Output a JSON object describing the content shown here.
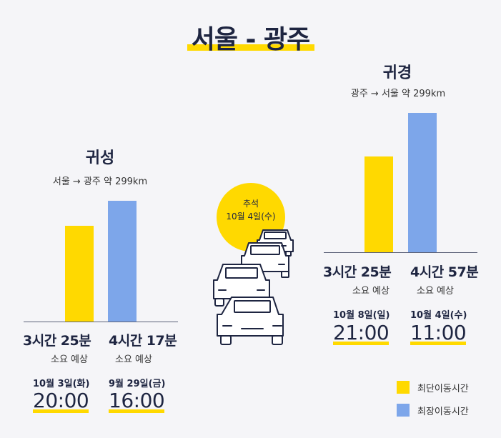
{
  "title": "서울 - 광주",
  "moon": {
    "line1": "추석",
    "line2": "10월 4일(수)"
  },
  "legend": {
    "shortest": "최단이동시간",
    "longest": "최장이동시간"
  },
  "colors": {
    "shortest": "#ffd900",
    "longest": "#7da6ea",
    "text": "#1e2541",
    "background": "#f5f5f8"
  },
  "chart_data": [
    {
      "type": "bar",
      "title": "귀성",
      "route": "서울 → 광주 약 299km",
      "categories": [
        "최단이동시간",
        "최장이동시간"
      ],
      "values": [
        205,
        257
      ],
      "unit": "minutes",
      "labels": [
        "3시간 25분",
        "4시간 17분"
      ],
      "sublabel": "소요 예상",
      "dates": [
        "10월 3일(화)",
        "9월 29일(금)"
      ],
      "times": [
        "20:00",
        "16:00"
      ]
    },
    {
      "type": "bar",
      "title": "귀경",
      "route": "광주 → 서울 약 299km",
      "categories": [
        "최단이동시간",
        "최장이동시간"
      ],
      "values": [
        205,
        297
      ],
      "unit": "minutes",
      "labels": [
        "3시간 25분",
        "4시간 57분"
      ],
      "sublabel": "소요 예상",
      "dates": [
        "10월 8일(일)",
        "10월 4일(수)"
      ],
      "times": [
        "21:00",
        "11:00"
      ]
    }
  ]
}
